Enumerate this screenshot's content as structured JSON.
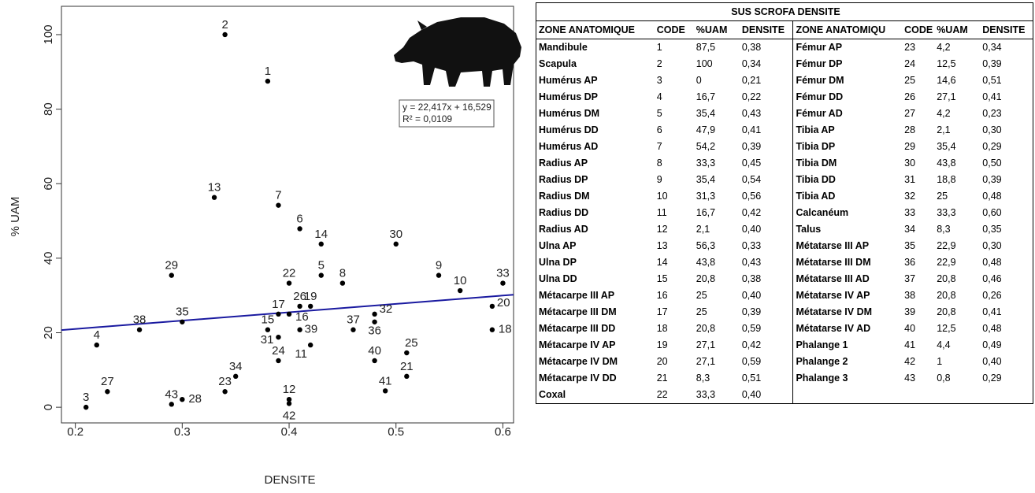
{
  "chart_data": {
    "type": "scatter",
    "xlabel": "DENSITE",
    "ylabel": "% UAM",
    "color": "#000000",
    "x": [
      0.38,
      0.34,
      0.21,
      0.22,
      0.43,
      0.41,
      0.39,
      0.45,
      0.54,
      0.56,
      0.42,
      0.4,
      0.33,
      0.43,
      0.38,
      0.4,
      0.39,
      0.59,
      0.42,
      0.59,
      0.51,
      0.4,
      0.34,
      0.39,
      0.51,
      0.41,
      0.23,
      0.3,
      0.29,
      0.5,
      0.39,
      0.48,
      0.6,
      0.35,
      0.3,
      0.48,
      0.46,
      0.26,
      0.41,
      0.48,
      0.49,
      0.4,
      0.29
    ],
    "values": [
      87.5,
      100,
      0,
      16.7,
      35.4,
      47.9,
      54.2,
      33.3,
      35.4,
      31.3,
      16.7,
      2.1,
      56.3,
      43.8,
      20.8,
      25,
      25,
      20.8,
      27.1,
      27.1,
      8.3,
      33.3,
      4.2,
      12.5,
      14.6,
      27.1,
      4.2,
      2.1,
      35.4,
      43.8,
      18.8,
      25,
      33.3,
      8.3,
      22.9,
      22.9,
      20.8,
      20.8,
      20.8,
      12.5,
      4.4,
      1,
      0.8
    ],
    "point_labels": [
      1,
      2,
      3,
      4,
      5,
      6,
      7,
      8,
      9,
      10,
      11,
      12,
      13,
      14,
      15,
      16,
      17,
      18,
      19,
      20,
      21,
      22,
      23,
      24,
      25,
      26,
      27,
      28,
      29,
      30,
      31,
      32,
      33,
      34,
      35,
      36,
      37,
      38,
      39,
      40,
      41,
      42,
      43
    ],
    "xlim": [
      0.187,
      0.61
    ],
    "ylim": [
      -4.2,
      107.6
    ],
    "xticks": [
      0.2,
      0.3,
      0.4,
      0.5,
      0.6
    ],
    "yticks": [
      0,
      20,
      40,
      60,
      80,
      100
    ],
    "trendline": {
      "label": "y = 22,417x + 16,529",
      "r2_label": "R² = 0,0109",
      "slope": 22.417,
      "intercept": 16.529,
      "color": "#1a1aa0"
    }
  },
  "table": {
    "title": "SUS SCROFA DENSITE",
    "headers": [
      "ZONE ANATOMIQUE",
      "CODE",
      "%UAM",
      "DENSITE",
      "ZONE ANATOMIQU",
      "CODE",
      "%UAM",
      "DENSITE"
    ],
    "rows": [
      [
        "Mandibule",
        "1",
        "87,5",
        "0,38",
        "Fémur AP",
        "23",
        "4,2",
        "0,34"
      ],
      [
        "Scapula",
        "2",
        "100",
        "0,34",
        "Fémur DP",
        "24",
        "12,5",
        "0,39"
      ],
      [
        "Humérus AP",
        "3",
        "0",
        "0,21",
        "Fémur DM",
        "25",
        "14,6",
        "0,51"
      ],
      [
        "Humérus DP",
        "4",
        "16,7",
        "0,22",
        "Fémur DD",
        "26",
        "27,1",
        "0,41"
      ],
      [
        "Humérus DM",
        "5",
        "35,4",
        "0,43",
        "Fémur AD",
        "27",
        "4,2",
        "0,23"
      ],
      [
        "Humérus DD",
        "6",
        "47,9",
        "0,41",
        "Tibia AP",
        "28",
        "2,1",
        "0,30"
      ],
      [
        "Humérus AD",
        "7",
        "54,2",
        "0,39",
        "Tibia DP",
        "29",
        "35,4",
        "0,29"
      ],
      [
        "Radius AP",
        "8",
        "33,3",
        "0,45",
        "Tibia DM",
        "30",
        "43,8",
        "0,50"
      ],
      [
        "Radius DP",
        "9",
        "35,4",
        "0,54",
        "Tibia DD",
        "31",
        "18,8",
        "0,39"
      ],
      [
        "Radius DM",
        "10",
        "31,3",
        "0,56",
        "Tibia AD",
        "32",
        "25",
        "0,48"
      ],
      [
        "Radius DD",
        "11",
        "16,7",
        "0,42",
        "Calcanéum",
        "33",
        "33,3",
        "0,60"
      ],
      [
        "Radius AD",
        "12",
        "2,1",
        "0,40",
        "Talus",
        "34",
        "8,3",
        "0,35"
      ],
      [
        "Ulna AP",
        "13",
        "56,3",
        "0,33",
        "Métatarse III AP",
        "35",
        "22,9",
        "0,30"
      ],
      [
        "Ulna DP",
        "14",
        "43,8",
        "0,43",
        "Métatarse III DM",
        "36",
        "22,9",
        "0,48"
      ],
      [
        "Ulna DD",
        "15",
        "20,8",
        "0,38",
        "Métatarse III AD",
        "37",
        "20,8",
        "0,46"
      ],
      [
        "Métacarpe III AP",
        "16",
        "25",
        "0,40",
        "Métatarse IV AP",
        "38",
        "20,8",
        "0,26"
      ],
      [
        "Métacarpe III DM",
        "17",
        "25",
        "0,39",
        "Métatarse IV DM",
        "39",
        "20,8",
        "0,41"
      ],
      [
        "Métacarpe III DD",
        "18",
        "20,8",
        "0,59",
        "Métatarse IV AD",
        "40",
        "12,5",
        "0,48"
      ],
      [
        "Métacarpe IV AP",
        "19",
        "27,1",
        "0,42",
        "Phalange 1",
        "41",
        "4,4",
        "0,49"
      ],
      [
        "Métacarpe IV DM",
        "20",
        "27,1",
        "0,59",
        "Phalange 2",
        "42",
        "1",
        "0,40"
      ],
      [
        "Métacarpe IV DD",
        "21",
        "8,3",
        "0,51",
        "Phalange 3",
        "43",
        "0,8",
        "0,29"
      ],
      [
        "Coxal",
        "22",
        "33,3",
        "0,40"
      ]
    ]
  }
}
